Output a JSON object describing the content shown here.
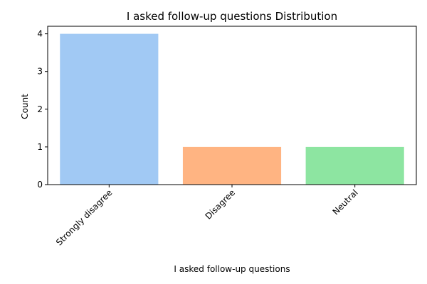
{
  "chart_data": {
    "type": "bar",
    "title": "I asked follow-up questions Distribution",
    "xlabel": "I asked follow-up questions",
    "ylabel": "Count",
    "categories": [
      "Strongly disagree",
      "Disagree",
      "Neutral"
    ],
    "values": [
      4,
      1,
      1
    ],
    "colors": [
      "#a1c9f4",
      "#ffb482",
      "#8de5a1"
    ],
    "ylim": [
      0,
      4.2
    ],
    "yticks": [
      0,
      1,
      2,
      3,
      4
    ],
    "grid": false,
    "legend": "none"
  }
}
